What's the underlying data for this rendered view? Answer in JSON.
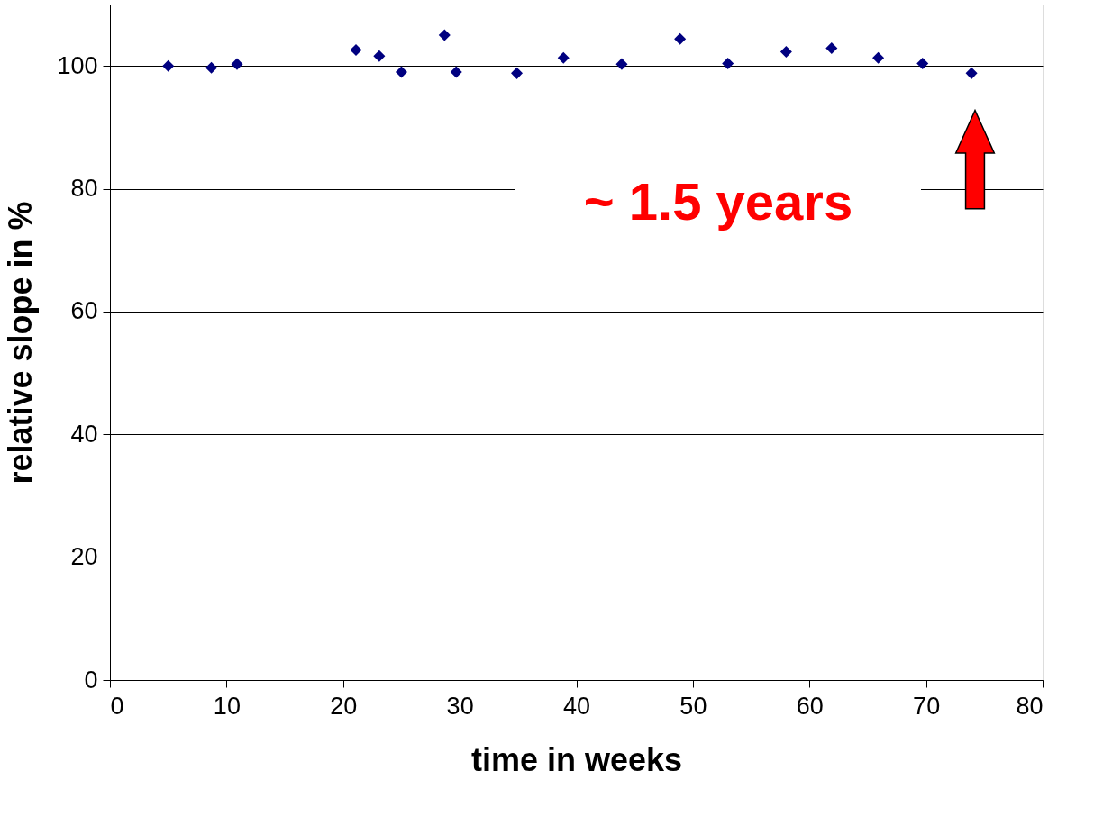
{
  "chart_data": {
    "type": "scatter",
    "xlabel": "time in weeks",
    "ylabel": "relative slope in %",
    "x": [
      5.0,
      8.7,
      10.9,
      21.1,
      23.1,
      25.0,
      28.7,
      29.7,
      34.9,
      38.9,
      43.9,
      48.9,
      53.0,
      58.0,
      61.9,
      65.9,
      69.7,
      73.9
    ],
    "series": [
      {
        "color": "#000080",
        "values": [
          100.0,
          99.7,
          100.3,
          102.6,
          101.6,
          99.0,
          105.0,
          99.0,
          98.8,
          101.3,
          100.3,
          104.4,
          100.4,
          102.3,
          102.9,
          101.3,
          100.4,
          98.8
        ]
      }
    ],
    "xlim": [
      0,
      80
    ],
    "xticks": [
      0,
      10,
      20,
      30,
      40,
      50,
      60,
      70,
      80
    ],
    "ylim": [
      0,
      110
    ],
    "yticks": [
      0,
      20,
      40,
      60,
      80,
      100
    ],
    "grid": "y",
    "marker": "diamond",
    "legend": false,
    "annotations": [
      "~ 1.5 years"
    ]
  }
}
